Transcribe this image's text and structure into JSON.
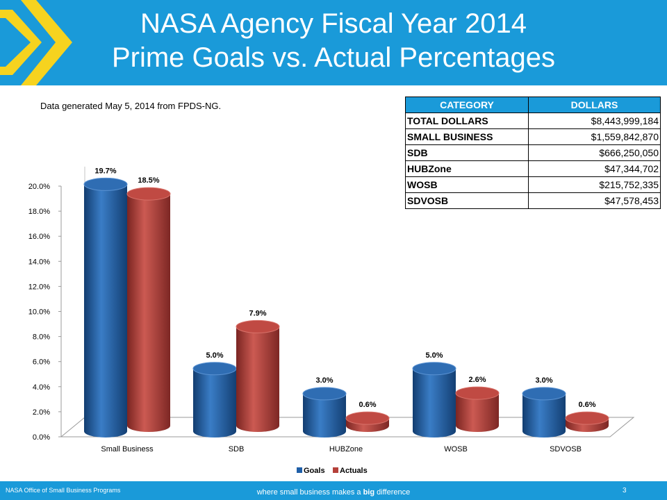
{
  "header": {
    "title_line1": "NASA Agency Fiscal Year 2014",
    "title_line2": "Prime Goals vs. Actual Percentages"
  },
  "note": "Data generated  May 5, 2014 from FPDS-NG.",
  "table": {
    "headers": [
      "CATEGORY",
      "DOLLARS"
    ],
    "rows": [
      [
        "TOTAL DOLLARS",
        "$8,443,999,184"
      ],
      [
        "SMALL BUSINESS",
        "$1,559,842,870"
      ],
      [
        "SDB",
        "$666,250,050"
      ],
      [
        "HUBZone",
        "$47,344,702"
      ],
      [
        "WOSB",
        "$215,752,335"
      ],
      [
        "SDVOSB",
        "$47,578,453"
      ]
    ]
  },
  "footer": {
    "left": "NASA Office of Small Business Programs",
    "tagline_pre": "where small business makes a ",
    "tagline_bold": "big",
    "tagline_post": " difference",
    "page": "3"
  },
  "colors": {
    "brand": "#1a9ad9",
    "chevron": "#f6d31f",
    "goals": "#1f5fa8",
    "actuals": "#b5403a"
  },
  "chart_data": {
    "type": "bar",
    "categories": [
      "Small Business",
      "SDB",
      "HUBZone",
      "WOSB",
      "SDVOSB"
    ],
    "series": [
      {
        "name": "Goals",
        "values": [
          19.7,
          5.0,
          3.0,
          5.0,
          3.0
        ],
        "labels": [
          "19.7%",
          "5.0%",
          "3.0%",
          "5.0%",
          "3.0%"
        ]
      },
      {
        "name": "Actuals",
        "values": [
          18.5,
          7.9,
          0.6,
          2.6,
          0.6
        ],
        "labels": [
          "18.5%",
          "7.9%",
          "0.6%",
          "2.6%",
          "0.6%"
        ]
      }
    ],
    "yticks": [
      "0.0%",
      "2.0%",
      "4.0%",
      "6.0%",
      "8.0%",
      "10.0%",
      "12.0%",
      "14.0%",
      "16.0%",
      "18.0%",
      "20.0%"
    ],
    "ylim": [
      0,
      20
    ],
    "legend_position": "bottom",
    "style": "3d-cylinder"
  }
}
